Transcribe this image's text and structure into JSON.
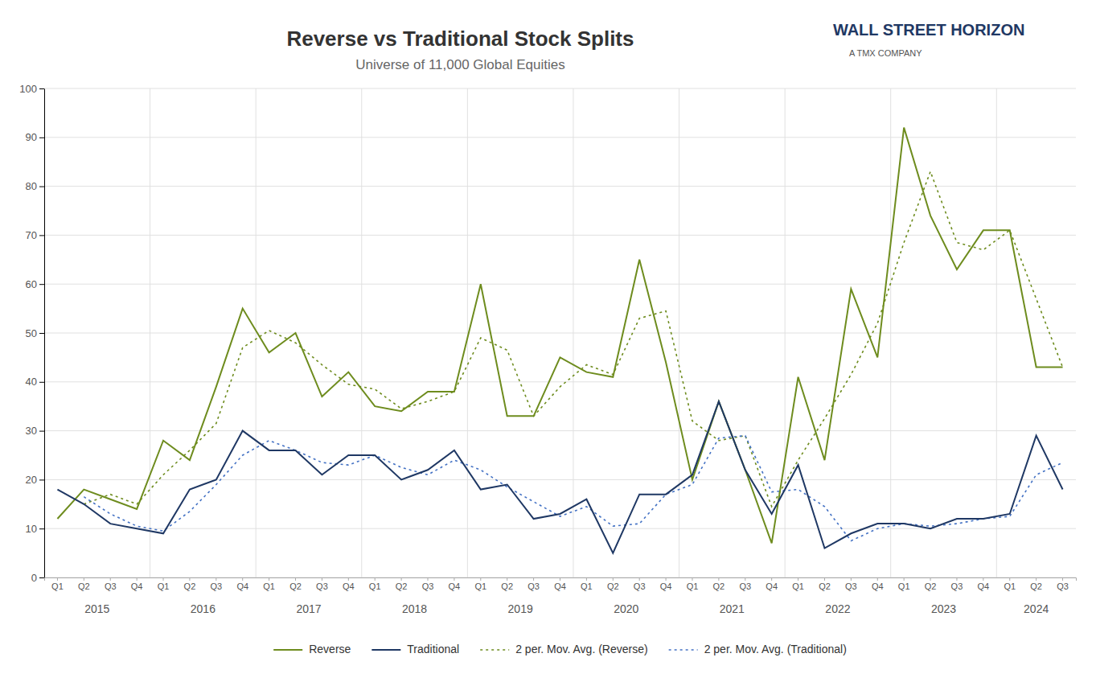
{
  "chart_data": {
    "type": "line",
    "title": "Reverse vs Traditional Stock Splits",
    "subtitle": "Universe of 11,000 Global Equities",
    "annotations": [
      "WALL STREET HORIZON",
      "A TMX COMPANY"
    ],
    "categories": [
      "Q1",
      "Q2",
      "Q3",
      "Q4",
      "Q1",
      "Q2",
      "Q3",
      "Q4",
      "Q1",
      "Q2",
      "Q3",
      "Q4",
      "Q1",
      "Q2",
      "Q3",
      "Q4",
      "Q1",
      "Q2",
      "Q3",
      "Q4",
      "Q1",
      "Q2",
      "Q3",
      "Q4",
      "Q1",
      "Q2",
      "Q3",
      "Q4",
      "Q1",
      "Q2",
      "Q3",
      "Q4",
      "Q1",
      "Q2",
      "Q3",
      "Q4",
      "Q1",
      "Q2",
      "Q3"
    ],
    "x_groups": [
      "2015",
      "2016",
      "2017",
      "2018",
      "2019",
      "2020",
      "2021",
      "2022",
      "2023",
      "2024"
    ],
    "series": [
      {
        "name": "Reverse",
        "color": "#6e8c1e",
        "line_style": "solid",
        "values": [
          12,
          18,
          16,
          14,
          28,
          24,
          39,
          55,
          46,
          50,
          37,
          42,
          35,
          34,
          38,
          38,
          60,
          33,
          33,
          45,
          42,
          41,
          65,
          44,
          20,
          36,
          22,
          7,
          41,
          24,
          59,
          45,
          92,
          74,
          63,
          71,
          71,
          43,
          43
        ]
      },
      {
        "name": "Traditional",
        "color": "#1f3864",
        "line_style": "solid",
        "values": [
          18,
          15,
          11,
          10,
          9,
          18,
          20,
          30,
          26,
          26,
          21,
          25,
          25,
          20,
          22,
          26,
          18,
          19,
          12,
          13,
          16,
          5,
          17,
          17,
          21,
          36,
          22,
          13,
          23,
          6,
          9,
          11,
          11,
          10,
          12,
          12,
          13,
          29,
          18
        ]
      },
      {
        "name": "2 per. Mov. Avg. (Reverse)",
        "color": "#6e8c1e",
        "line_style": "dotted",
        "values": [
          null,
          15,
          17,
          15,
          21,
          26,
          31.5,
          47,
          50.5,
          48,
          43.5,
          39.5,
          38.5,
          34.5,
          36,
          38,
          49,
          46.5,
          33,
          39,
          43.5,
          41.5,
          53,
          54.5,
          32,
          28,
          29,
          14.5,
          24,
          32.5,
          41.5,
          52,
          68.5,
          83,
          68.5,
          67,
          71,
          57,
          43
        ]
      },
      {
        "name": "2 per. Mov. Avg. (Traditional)",
        "color": "#4472c4",
        "line_style": "dotted",
        "values": [
          null,
          16.5,
          13,
          10.5,
          9.5,
          13.5,
          19,
          25,
          28,
          26,
          23.5,
          23,
          25,
          22.5,
          21,
          24,
          22,
          18.5,
          15.5,
          12.5,
          14.5,
          10.5,
          11,
          17,
          19,
          28.5,
          29,
          17.5,
          18,
          14.5,
          7.5,
          10,
          11,
          10.5,
          11,
          12,
          12.5,
          21,
          23.5
        ]
      }
    ],
    "ylim": [
      0,
      100
    ],
    "yticks": [
      0,
      10,
      20,
      30,
      40,
      50,
      60,
      70,
      80,
      90,
      100
    ],
    "grid": true,
    "legend": "bottom"
  }
}
